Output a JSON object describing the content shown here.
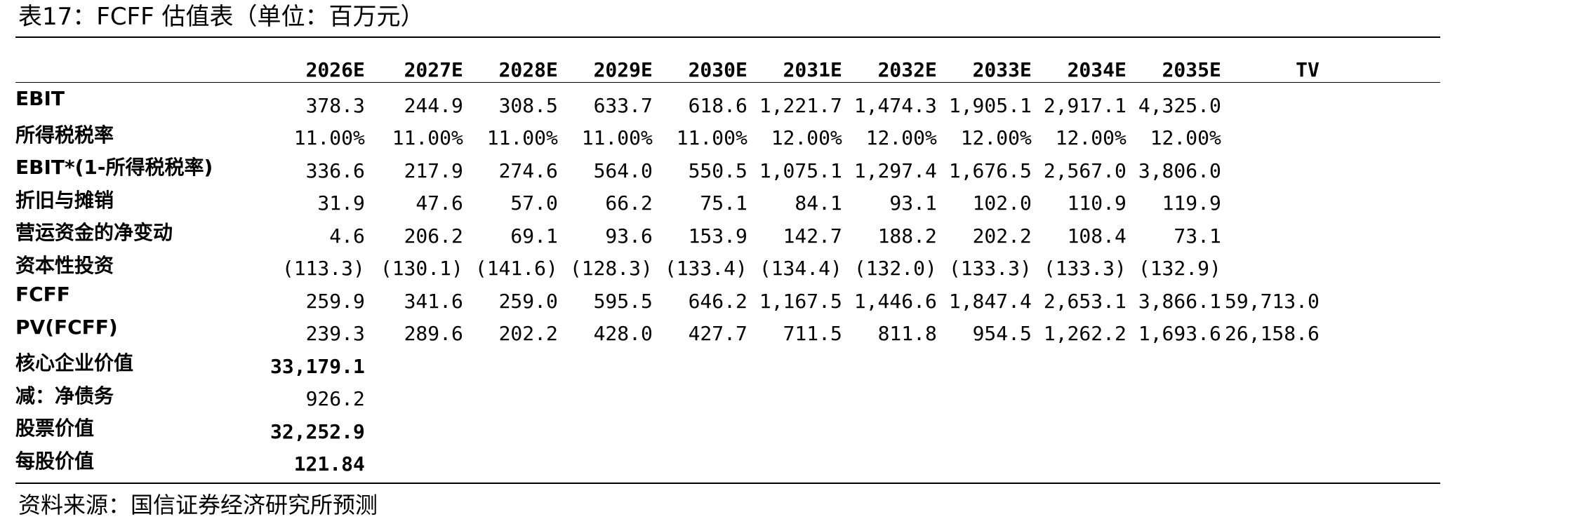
{
  "title": "表17：FCFF 估值表（单位：百万元）",
  "source": "资料来源：国信证券经济研究所预测",
  "columns": [
    "2026E",
    "2027E",
    "2028E",
    "2029E",
    "2030E",
    "2031E",
    "2032E",
    "2033E",
    "2034E",
    "2035E",
    "TV"
  ],
  "rows": [
    {
      "label": "EBIT",
      "values": [
        "378.3",
        "244.9",
        "308.5",
        "633.7",
        "618.6",
        "1,221.7",
        "1,474.3",
        "1,905.1",
        "2,917.1",
        "4,325.0",
        ""
      ]
    },
    {
      "label": "所得税税率",
      "values": [
        "11.00%",
        "11.00%",
        "11.00%",
        "11.00%",
        "11.00%",
        "12.00%",
        "12.00%",
        "12.00%",
        "12.00%",
        "12.00%",
        ""
      ]
    },
    {
      "label": "EBIT*(1-所得税税率)",
      "values": [
        "336.6",
        "217.9",
        "274.6",
        "564.0",
        "550.5",
        "1,075.1",
        "1,297.4",
        "1,676.5",
        "2,567.0",
        "3,806.0",
        ""
      ]
    },
    {
      "label": "折旧与摊销",
      "values": [
        "31.9",
        "47.6",
        "57.0",
        "66.2",
        "75.1",
        "84.1",
        "93.1",
        "102.0",
        "110.9",
        "119.9",
        ""
      ]
    },
    {
      "label": "营运资金的净变动",
      "values": [
        "4.6",
        "206.2",
        "69.1",
        "93.6",
        "153.9",
        "142.7",
        "188.2",
        "202.2",
        "108.4",
        "73.1",
        ""
      ]
    },
    {
      "label": "资本性投资",
      "values": [
        "(113.3)",
        "(130.1)",
        "(141.6)",
        "(128.3)",
        "(133.4)",
        "(134.4)",
        "(132.0)",
        "(133.3)",
        "(133.3)",
        "(132.9)",
        ""
      ]
    },
    {
      "label": "FCFF",
      "values": [
        "259.9",
        "341.6",
        "259.0",
        "595.5",
        "646.2",
        "1,167.5",
        "1,446.6",
        "1,847.4",
        "2,653.1",
        "3,866.1",
        "59,713.0"
      ]
    },
    {
      "label": "PV(FCFF)",
      "values": [
        "239.3",
        "289.6",
        "202.2",
        "428.0",
        "427.7",
        "711.5",
        "811.8",
        "954.5",
        "1,262.2",
        "1,693.6",
        "26,158.6"
      ]
    }
  ],
  "summary": [
    {
      "label": "核心企业价值",
      "value": "33,179.1",
      "bold": true
    },
    {
      "label": "减：净债务",
      "value": "926.2",
      "bold": false
    },
    {
      "label": "股票价值",
      "value": "32,252.9",
      "bold": true
    },
    {
      "label": "每股价值",
      "value": "121.84",
      "bold": true
    }
  ]
}
